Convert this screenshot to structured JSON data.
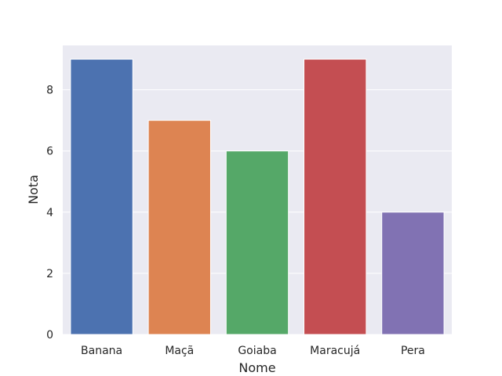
{
  "chart_data": {
    "type": "bar",
    "categories": [
      "Banana",
      "Maçã",
      "Goiaba",
      "Maracujá",
      "Pera"
    ],
    "values": [
      9,
      7,
      6,
      9,
      4
    ],
    "colors": [
      "#4c72b0",
      "#dd8452",
      "#55a868",
      "#c44e52",
      "#8172b3"
    ],
    "background": "#eaeaf2",
    "grid": true,
    "xlabel": "Nome",
    "ylabel": "Nota",
    "ylim": [
      0,
      9.45
    ],
    "yticks": [
      0,
      2,
      4,
      6,
      8
    ],
    "ytick_labels": [
      "0",
      "2",
      "4",
      "6",
      "8"
    ]
  }
}
